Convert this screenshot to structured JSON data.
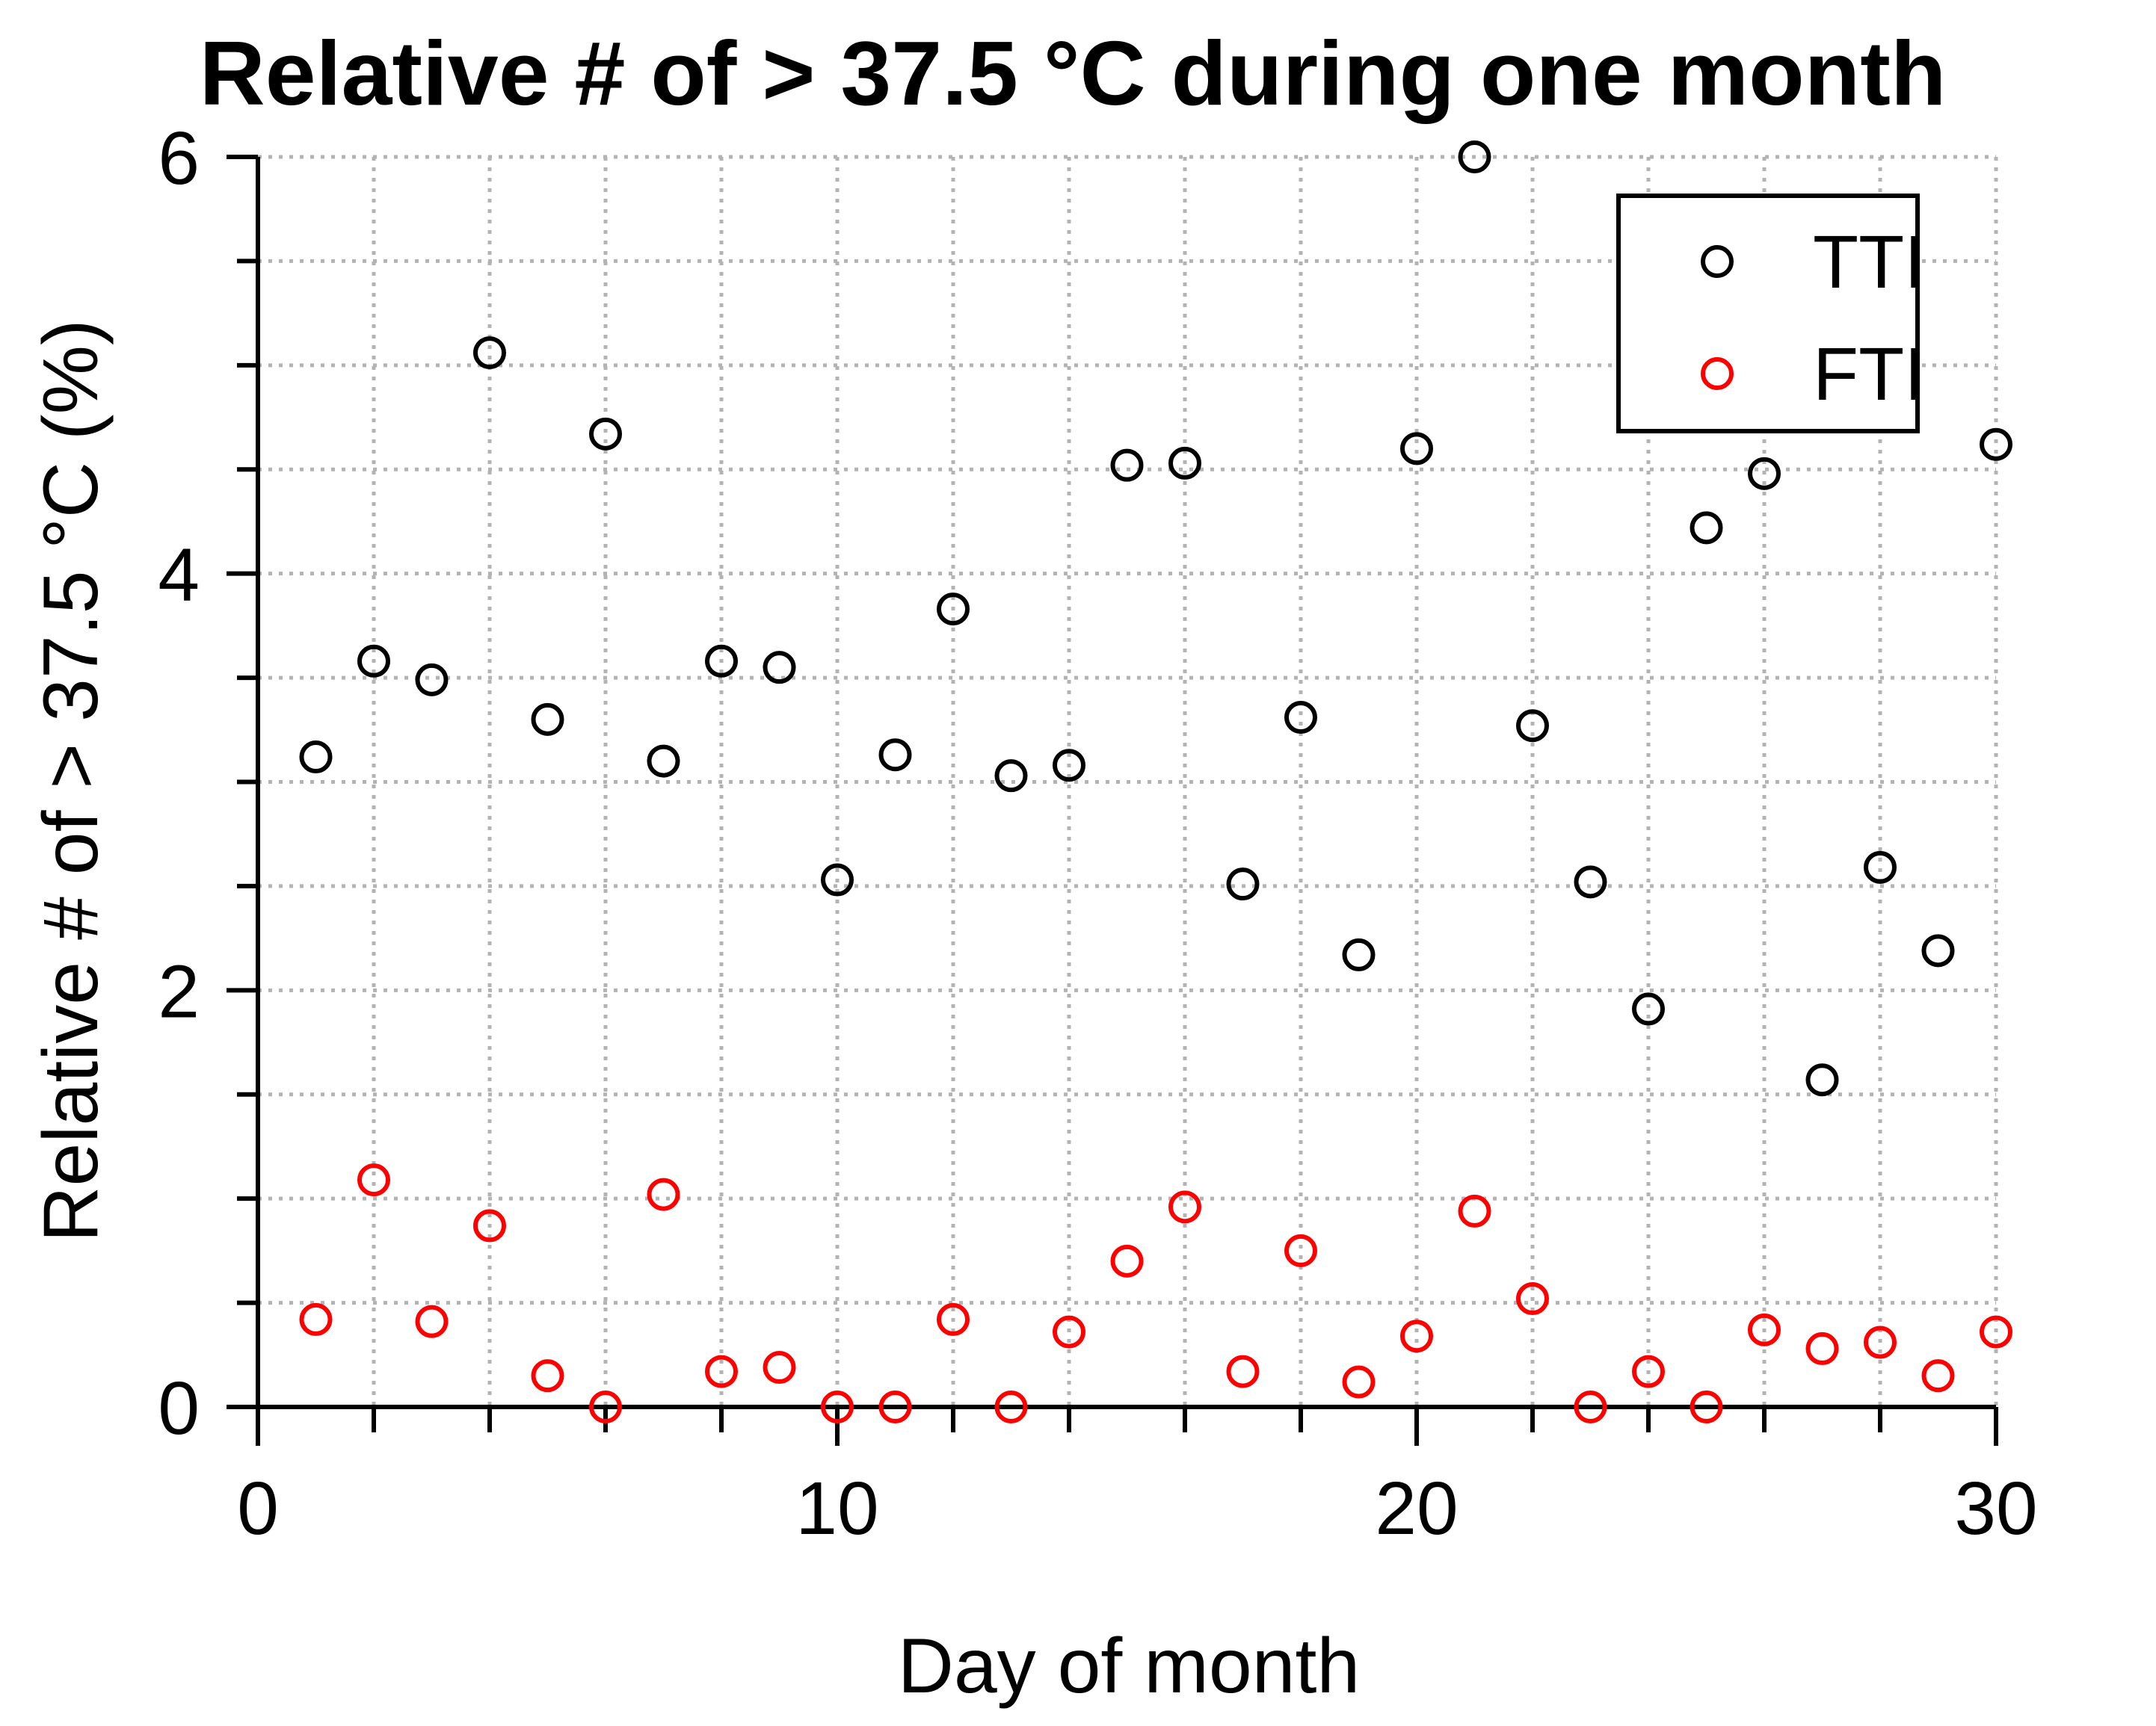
{
  "chart_data": {
    "type": "scatter",
    "title": "Relative # of > 37.5 °C during one month",
    "xlabel": "Day of month",
    "ylabel": "Relative # of > 37.5 °C (%)",
    "xlim": [
      0,
      30
    ],
    "ylim": [
      0,
      6
    ],
    "xticks": [
      0,
      10,
      20,
      30
    ],
    "yticks": [
      0,
      2,
      4,
      6
    ],
    "x_grid_step": 2,
    "y_grid_step": 0.5,
    "grid": true,
    "grid_style": "dotted",
    "legend_position": "top-right",
    "x": [
      1,
      2,
      3,
      4,
      5,
      6,
      7,
      8,
      9,
      10,
      11,
      12,
      13,
      14,
      15,
      16,
      17,
      18,
      19,
      20,
      21,
      22,
      23,
      24,
      25,
      26,
      27,
      28,
      29,
      30
    ],
    "series": [
      {
        "name": "TTI",
        "color": "#000000",
        "marker": "circle-open",
        "values": [
          3.12,
          3.58,
          3.49,
          5.06,
          3.3,
          4.67,
          3.1,
          3.58,
          3.55,
          2.53,
          3.13,
          3.83,
          3.03,
          3.08,
          4.52,
          4.53,
          2.51,
          3.31,
          2.17,
          4.6,
          6.0,
          3.27,
          2.52,
          1.91,
          4.22,
          4.48,
          1.57,
          2.59,
          2.19,
          4.62
        ]
      },
      {
        "name": "FTI",
        "color": "#ff0000",
        "marker": "circle-open",
        "values": [
          0.42,
          1.09,
          0.41,
          0.87,
          0.15,
          0.0,
          1.02,
          0.17,
          0.19,
          0.0,
          0.0,
          0.42,
          0.0,
          0.36,
          0.7,
          0.96,
          0.17,
          0.75,
          0.12,
          0.34,
          0.94,
          0.52,
          0.0,
          0.17,
          0.0,
          0.37,
          0.28,
          0.31,
          0.15,
          0.36
        ]
      }
    ]
  }
}
